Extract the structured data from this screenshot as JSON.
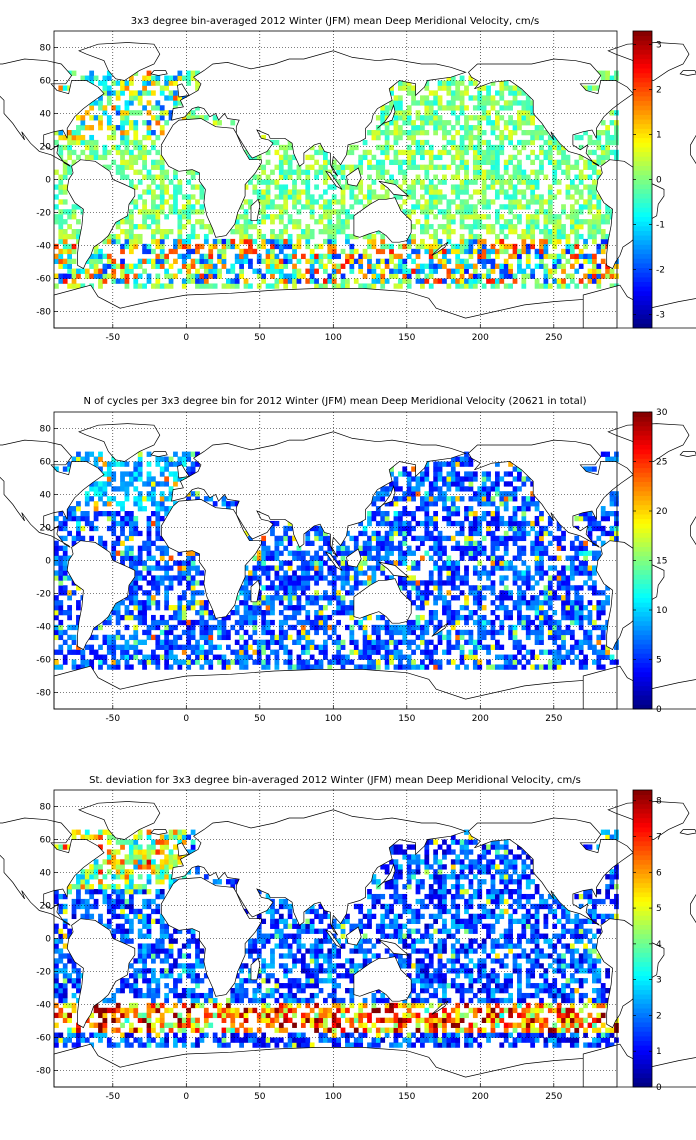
{
  "chart_data": [
    {
      "type": "heatmap",
      "title": "3x3 degree bin-averaged 2012 Winter (JFM) mean Deep Meridional Velocity, cm/s",
      "xlabel": "",
      "ylabel": "",
      "bin_size_deg": 3,
      "xlim": [
        -90,
        293
      ],
      "ylim": [
        -90,
        90
      ],
      "xticks": [
        -50,
        0,
        50,
        100,
        150,
        200,
        250
      ],
      "yticks": [
        80,
        60,
        40,
        20,
        0,
        -20,
        -40,
        -60,
        -80
      ],
      "grid": true,
      "colorbar": {
        "range": [
          -3.3,
          3.3
        ],
        "ticks": [
          -3,
          -2,
          -1,
          0,
          1,
          2,
          3
        ],
        "colormap": "jet"
      },
      "value_model": "diverging",
      "value_scale": 3.0,
      "seed": 11
    },
    {
      "type": "heatmap",
      "title": "N of cycles per 3x3 degree bin for 2012 Winter (JFM) mean Deep Meridional Velocity (20621 in total)",
      "xlabel": "",
      "ylabel": "",
      "bin_size_deg": 3,
      "xlim": [
        -90,
        293
      ],
      "ylim": [
        -90,
        90
      ],
      "xticks": [
        -50,
        0,
        50,
        100,
        150,
        200,
        250
      ],
      "yticks": [
        80,
        60,
        40,
        20,
        0,
        -20,
        -40,
        -60,
        -80
      ],
      "grid": true,
      "colorbar": {
        "range": [
          0,
          30
        ],
        "ticks": [
          0,
          5,
          10,
          15,
          20,
          25,
          30
        ],
        "colormap": "jet"
      },
      "value_model": "count",
      "value_scale": 30,
      "seed": 23
    },
    {
      "type": "heatmap",
      "title": "St. deviation for 3x3 degree bin-averaged 2012 Winter (JFM) mean Deep Meridional Velocity, cm/s",
      "xlabel": "",
      "ylabel": "",
      "bin_size_deg": 3,
      "xlim": [
        -90,
        293
      ],
      "ylim": [
        -90,
        90
      ],
      "xticks": [
        -50,
        0,
        50,
        100,
        150,
        200,
        250
      ],
      "yticks": [
        80,
        60,
        40,
        20,
        0,
        -20,
        -40,
        -60,
        -80
      ],
      "grid": true,
      "colorbar": {
        "range": [
          0,
          8.3
        ],
        "ticks": [
          0,
          1,
          2,
          3,
          4,
          5,
          6,
          7,
          8
        ],
        "colormap": "jet"
      },
      "value_model": "stdev",
      "value_scale": 8.3,
      "seed": 37
    }
  ]
}
